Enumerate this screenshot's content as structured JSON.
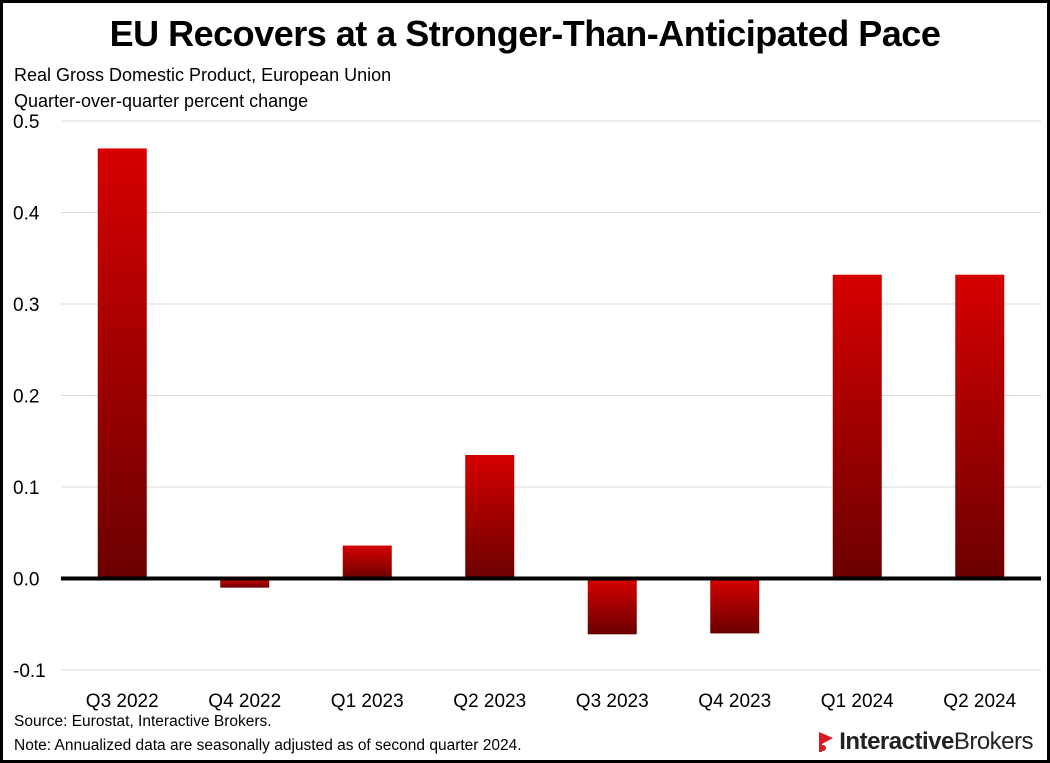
{
  "header": {
    "title": "EU Recovers at a Stronger-Than-Anticipated Pace",
    "subtitle_1": "Real Gross Domestic Product, European Union",
    "subtitle_2": "Quarter-over-quarter percent change"
  },
  "footer": {
    "source": "Source: Eurostat, Interactive Brokers.",
    "note": "Note: Annualized data are seasonally adjusted as of second quarter 2024.",
    "logo_part_1": "Interactive",
    "logo_part_2": "Brokers",
    "logo_icon": "ib-flag-icon"
  },
  "colors": {
    "bar_top": "#d60000",
    "bar_bottom": "#6b0000",
    "gridline": "#d9d9d9",
    "zero_line": "#000000",
    "logo_red": "#d71920"
  },
  "chart_data": {
    "type": "bar",
    "title": "EU Recovers at a Stronger-Than-Anticipated Pace",
    "xlabel": "",
    "ylabel": "Quarter-over-quarter percent change",
    "categories": [
      "Q3 2022",
      "Q4 2022",
      "Q1 2023",
      "Q2 2023",
      "Q3 2023",
      "Q4 2023",
      "Q1 2024",
      "Q2 2024"
    ],
    "values": [
      0.47,
      -0.01,
      0.036,
      0.135,
      -0.061,
      -0.06,
      0.332,
      0.332
    ],
    "ylim": [
      -0.1,
      0.5
    ],
    "yticks": [
      0.5,
      0.4,
      0.3,
      0.2,
      0.1,
      0.0,
      -0.1
    ],
    "ytick_labels": [
      "0.5",
      "0.4",
      "0.3",
      "0.2",
      "0.1",
      "0.0",
      "-0.1"
    ],
    "grid": true,
    "legend": "none"
  }
}
